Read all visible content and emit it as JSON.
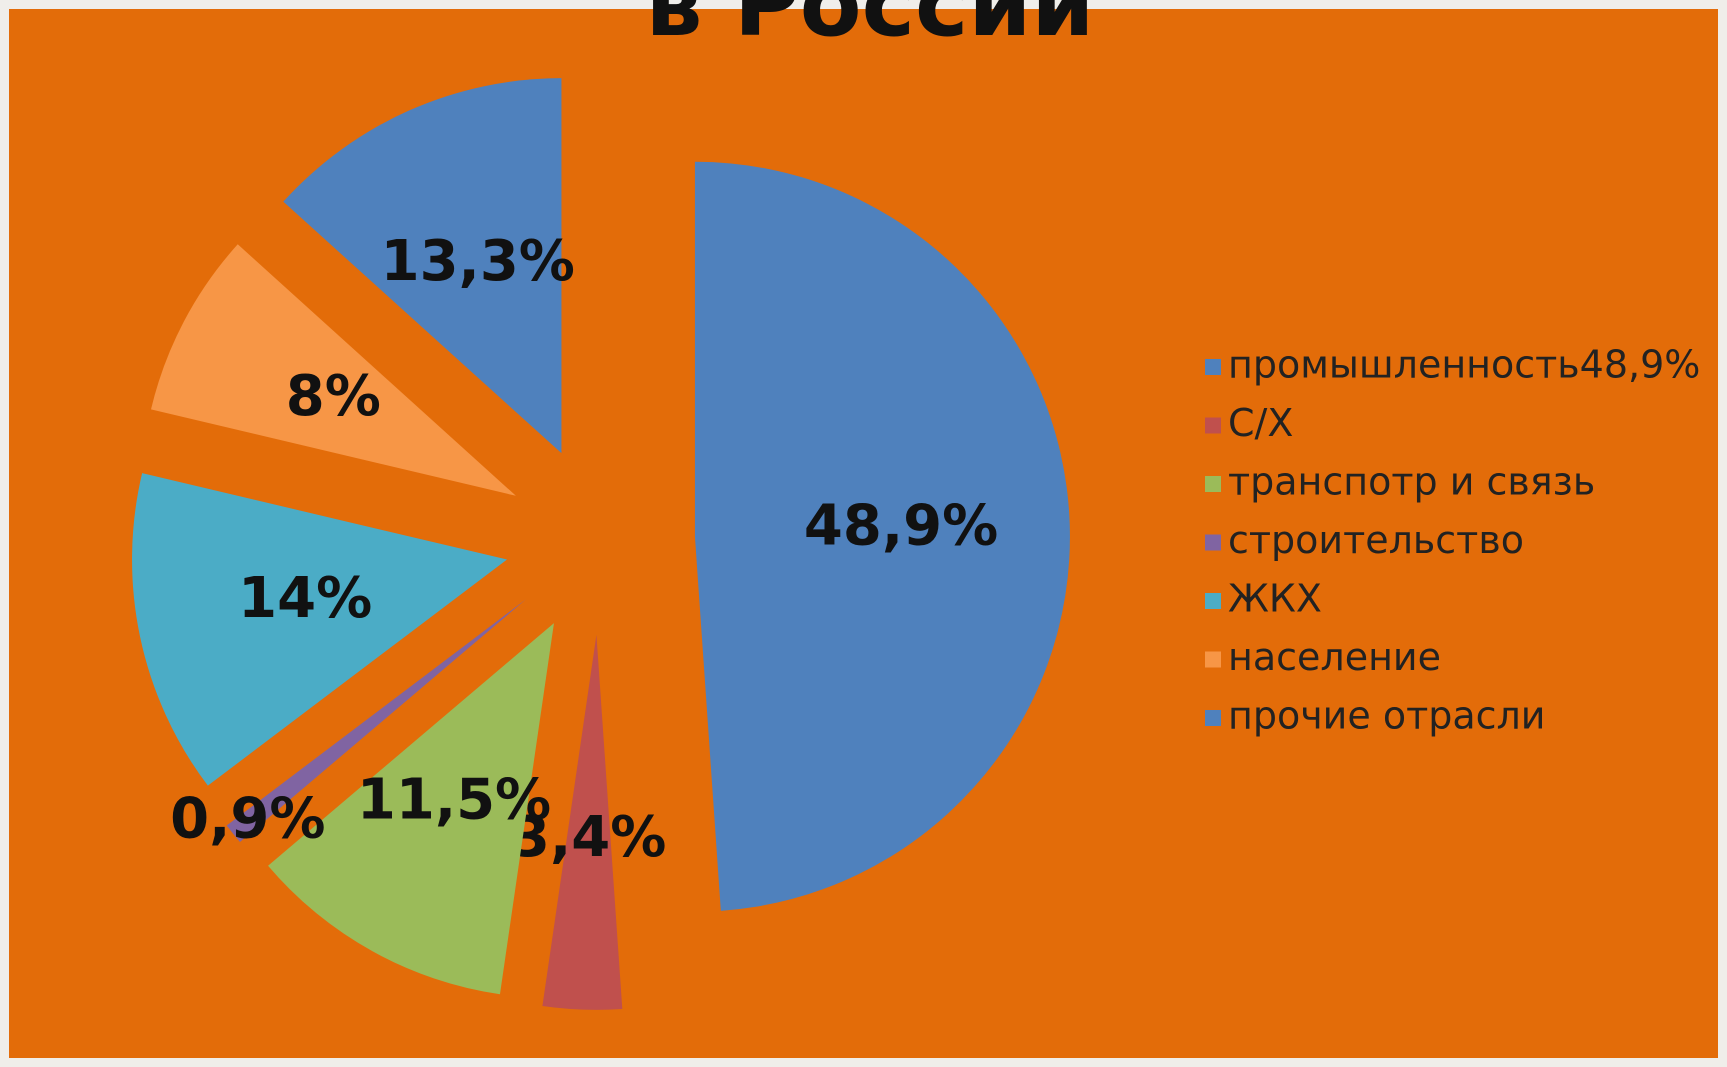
{
  "chart_data": {
    "type": "pie",
    "title": "в России",
    "categories": [
      "промышленность48,9%",
      "С/Х",
      "транспотр и связь",
      "строительство",
      "ЖКХ",
      "население",
      "прочие отрасли"
    ],
    "values": [
      48.9,
      3.4,
      11.5,
      0.9,
      14,
      8,
      13.3
    ],
    "value_labels": [
      "48,9%",
      "3,4%",
      "11,5%",
      "0,9%",
      "14%",
      "8%",
      "13,3%"
    ],
    "colors": [
      "#4f81bd",
      "#c0504d",
      "#9bbb59",
      "#8064a2",
      "#4bacc6",
      "#f79646",
      "#4f81bd"
    ],
    "legend": "right"
  }
}
